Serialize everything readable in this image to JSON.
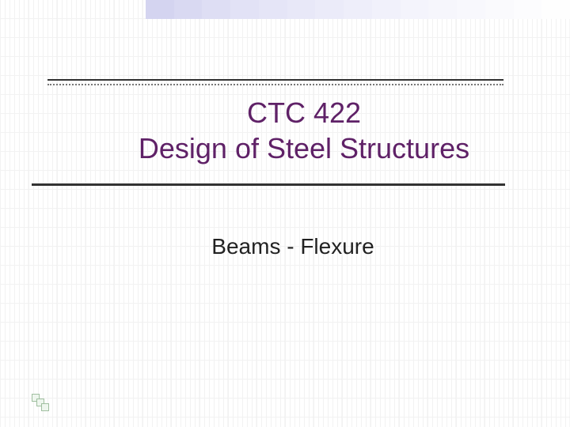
{
  "slide": {
    "title_line1": "CTC 422",
    "title_line2": "Design of Steel Structures",
    "subtitle": "Beams - Flexure",
    "title_color": "#5f2167",
    "subtitle_color": "#222222",
    "title_fontsize": 36,
    "subtitle_fontsize": 28,
    "background_color": "#ffffff",
    "grid_color": "#e8e8e8",
    "rule_color": "#333333",
    "top_band": {
      "colors": [
        "#d4d4f0",
        "#d9d9f2",
        "#dedef4",
        "#e2e2f6",
        "#e5e5f7",
        "#e8e8f8",
        "#ebebf9",
        "#eeeefa",
        "#f1f1fb",
        "#f4f4fc",
        "#f6f6fc",
        "#f8f8fd",
        "#fafafd",
        "#fcfcfe",
        "#fefefe"
      ]
    },
    "corner_mark_color": "#a0bfa0"
  }
}
